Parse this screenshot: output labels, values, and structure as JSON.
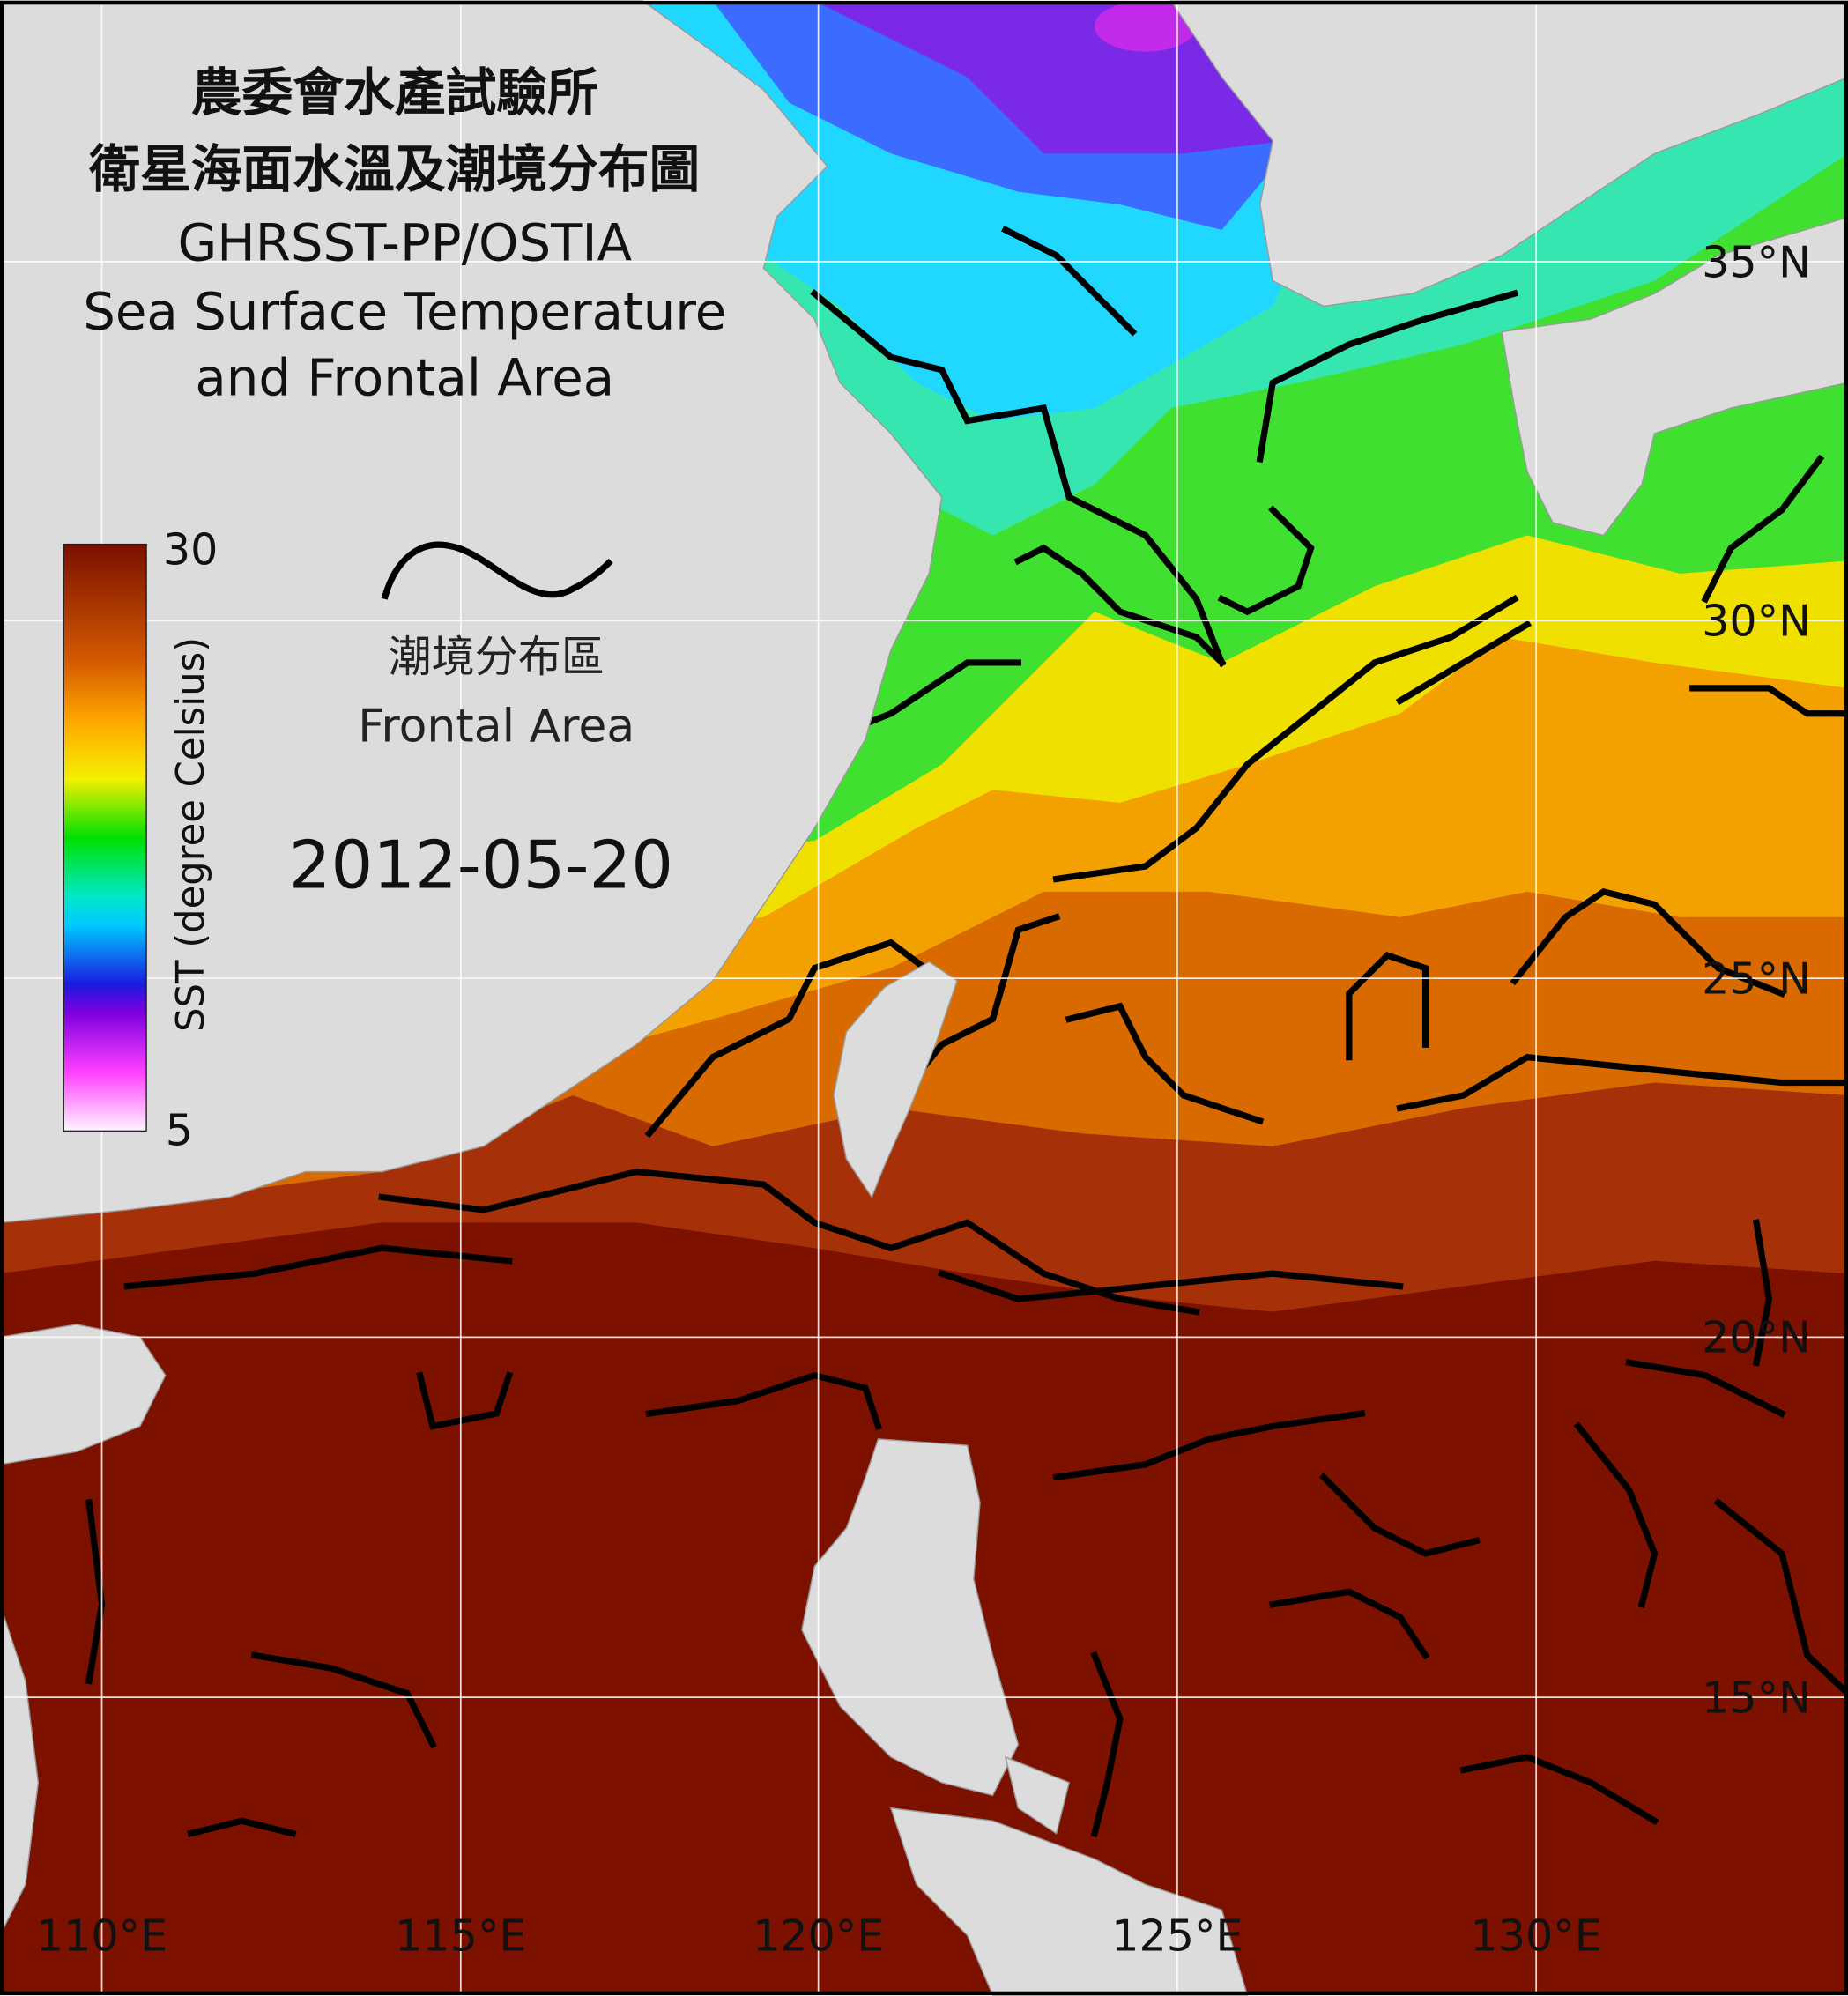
{
  "title_lines": [
    "農委會水產試驗所",
    "衛星海面水溫及潮境分布圖",
    "GHRSST-PP/OSTIA",
    "Sea Surface Temperature",
    "and Frontal Area"
  ],
  "colorbar": {
    "label": "SST (degree Celsius)",
    "max": "30",
    "min": "5"
  },
  "legend": {
    "label_zh": "潮境分布區",
    "label_en": "Frontal Area"
  },
  "date": "2012-05-20",
  "lat_labels": [
    "35°N",
    "30°N",
    "25°N",
    "20°N",
    "15°N"
  ],
  "lon_labels": [
    "110°E",
    "115°E",
    "120°E",
    "125°E",
    "130°E"
  ]
}
